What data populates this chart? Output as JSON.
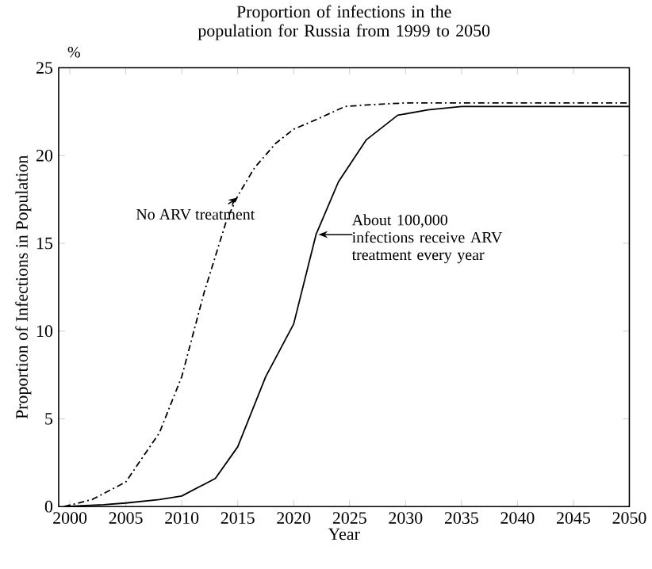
{
  "chart_data": {
    "type": "line",
    "title": "Proportion of infections in the population for Russia from 1999 to 2050",
    "xlabel": "Year",
    "ylabel": "Proportion of Infections in Population",
    "annotations": [
      "%",
      {
        "text": "No ARV treatment",
        "x": 2015,
        "y": 17.6
      },
      {
        "text": "About 100,000 infections receive ARV treatment every year",
        "x": 2022.2,
        "y": 15.5
      }
    ],
    "xlim": [
      1999,
      2050
    ],
    "xticks": [
      2000,
      2005,
      2010,
      2015,
      2020,
      2025,
      2030,
      2035,
      2040,
      2045,
      2050
    ],
    "ylim": [
      0,
      25
    ],
    "yticks": [
      0,
      5,
      10,
      15,
      20,
      25
    ],
    "grid": false,
    "series": [
      {
        "color": "#000000",
        "line_style": "dashdot",
        "x": [
          1999.5,
          2002,
          2005,
          2008,
          2010,
          2012,
          2014,
          2015,
          2016.5,
          2018.4,
          2020,
          2022.2,
          2024.6,
          2027,
          2030,
          2035,
          2040,
          2045,
          2050
        ],
        "values": [
          0,
          0.4,
          1.4,
          4.2,
          7.4,
          12.2,
          16.3,
          17.7,
          19.3,
          20.7,
          21.5,
          22.1,
          22.8,
          22.9,
          23,
          23,
          23,
          23,
          23
        ]
      },
      {
        "color": "#000000",
        "line_style": "solid",
        "x": [
          1999.5,
          2003,
          2005,
          2008,
          2010,
          2013,
          2015,
          2017.5,
          2020,
          2022,
          2024,
          2026.5,
          2029.3,
          2032,
          2035,
          2040,
          2045,
          2050
        ],
        "values": [
          0,
          0.1,
          0.2,
          0.4,
          0.6,
          1.6,
          3.4,
          7.4,
          10.4,
          15.5,
          18.5,
          20.9,
          22.3,
          22.6,
          22.8,
          22.8,
          22.8,
          22.8
        ]
      }
    ]
  }
}
